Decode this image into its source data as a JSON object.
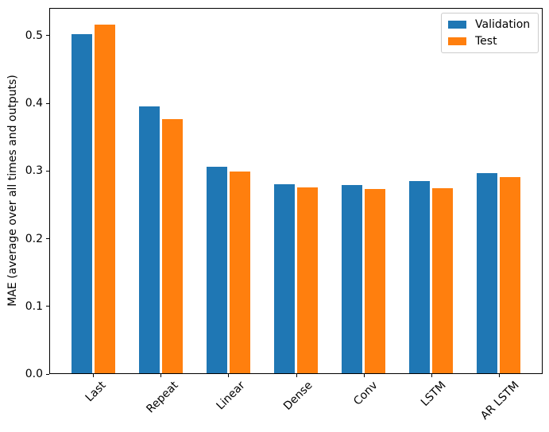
{
  "chart_data": {
    "type": "bar",
    "title": "",
    "xlabel": "",
    "ylabel": "MAE (average over all times and outputs)",
    "categories": [
      "Last",
      "Repeat",
      "Linear",
      "Dense",
      "Conv",
      "LSTM",
      "AR LSTM"
    ],
    "series": [
      {
        "name": "Validation",
        "color": "#1f77b4",
        "values": [
          0.502,
          0.395,
          0.306,
          0.28,
          0.279,
          0.285,
          0.297
        ]
      },
      {
        "name": "Test",
        "color": "#ff7f0e",
        "values": [
          0.516,
          0.377,
          0.299,
          0.276,
          0.273,
          0.275,
          0.291
        ]
      }
    ],
    "ylim": [
      0,
      0.541
    ],
    "yticks": [
      0.0,
      0.1,
      0.2,
      0.3,
      0.4,
      0.5
    ],
    "ytick_labels": [
      "0.0",
      "0.1",
      "0.2",
      "0.3",
      "0.4",
      "0.5"
    ],
    "xtick_rotation": 45,
    "grid": false,
    "legend_position": "upper right",
    "bar_width_frac": 0.3,
    "bar_offset_frac": 0.17,
    "axis_color": "#000000",
    "legend_border_color": "#cccccc",
    "background_color": "#ffffff"
  }
}
